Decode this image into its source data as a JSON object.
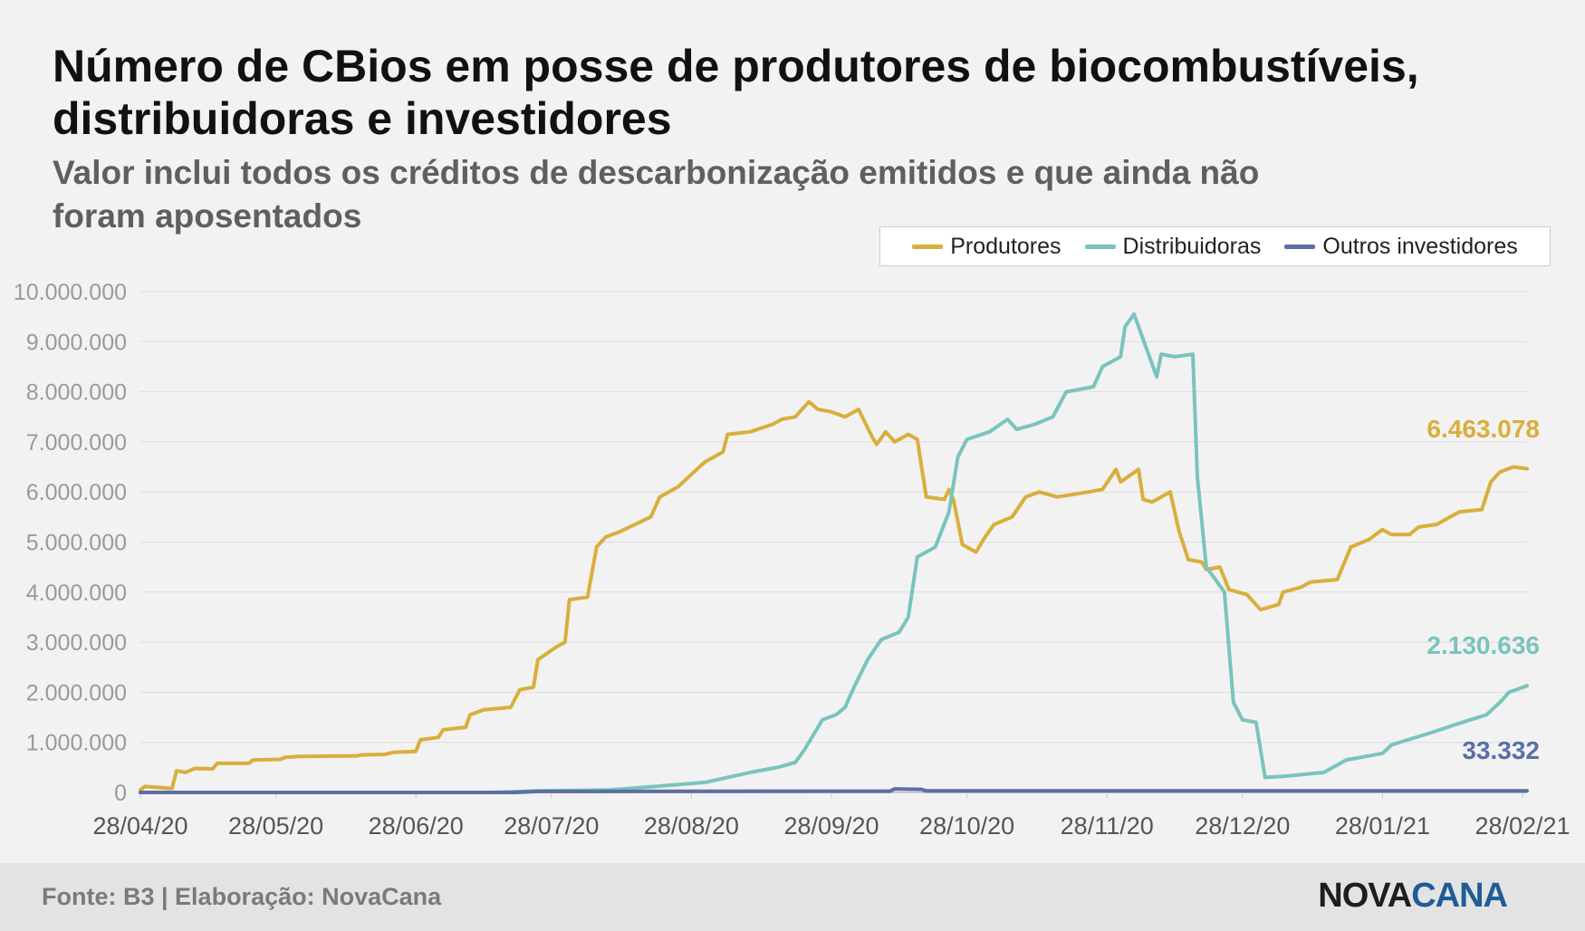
{
  "header": {
    "title": "Número de CBios em posse de produtores de biocombustíveis, distribuidoras e investidores",
    "subtitle": "Valor inclui todos os créditos de descarbonização emitidos e que ainda não foram aposentados"
  },
  "footer": {
    "source": "Fonte: B3 | Elaboração: NovaCana",
    "logo_part1": "NOVA",
    "logo_part2": "CANA"
  },
  "colors": {
    "produtores": "#d9ae3b",
    "distribuidoras": "#79c4bd",
    "outros": "#5a6fa3",
    "grid": "#dddddd",
    "tick_text": "#9a9a9a"
  },
  "chart_data": {
    "type": "line",
    "title": "Número de CBios em posse de produtores de biocombustíveis, distribuidoras e investidores",
    "subtitle": "Valor inclui todos os créditos de descarbonização emitidos e que ainda não foram aposentados",
    "xlabel": "",
    "ylabel": "",
    "x_start": "2020-04-28",
    "x_end": "2021-03-01",
    "ylim": [
      0,
      10000000
    ],
    "y_ticks": [
      "0",
      "1.000.000",
      "2.000.000",
      "3.000.000",
      "4.000.000",
      "5.000.000",
      "6.000.000",
      "7.000.000",
      "8.000.000",
      "9.000.000",
      "10.000.000"
    ],
    "x_ticks": [
      {
        "date": "2020-04-28",
        "label": "28/04/20"
      },
      {
        "date": "2020-05-28",
        "label": "28/05/20"
      },
      {
        "date": "2020-06-28",
        "label": "28/06/20"
      },
      {
        "date": "2020-07-28",
        "label": "28/07/20"
      },
      {
        "date": "2020-08-28",
        "label": "28/08/20"
      },
      {
        "date": "2020-09-28",
        "label": "28/09/20"
      },
      {
        "date": "2020-10-28",
        "label": "28/10/20"
      },
      {
        "date": "2020-11-28",
        "label": "28/11/20"
      },
      {
        "date": "2020-12-28",
        "label": "28/12/20"
      },
      {
        "date": "2021-01-28",
        "label": "28/01/21"
      },
      {
        "date": "2021-02-28",
        "label": "28/02/21"
      }
    ],
    "grid": true,
    "legend_position": "top-right",
    "series": [
      {
        "name": "Produtores",
        "end_label": "6.463.078",
        "points": [
          [
            "2020-04-28",
            50000
          ],
          [
            "2020-04-29",
            120000
          ],
          [
            "2020-05-02",
            100000
          ],
          [
            "2020-05-05",
            80000
          ],
          [
            "2020-05-06",
            430000
          ],
          [
            "2020-05-08",
            400000
          ],
          [
            "2020-05-10",
            480000
          ],
          [
            "2020-05-14",
            470000
          ],
          [
            "2020-05-15",
            580000
          ],
          [
            "2020-05-22",
            580000
          ],
          [
            "2020-05-23",
            650000
          ],
          [
            "2020-05-29",
            660000
          ],
          [
            "2020-05-30",
            700000
          ],
          [
            "2020-06-02",
            720000
          ],
          [
            "2020-06-15",
            730000
          ],
          [
            "2020-06-16",
            750000
          ],
          [
            "2020-06-21",
            760000
          ],
          [
            "2020-06-23",
            800000
          ],
          [
            "2020-06-28",
            820000
          ],
          [
            "2020-06-29",
            1050000
          ],
          [
            "2020-07-03",
            1100000
          ],
          [
            "2020-07-04",
            1250000
          ],
          [
            "2020-07-09",
            1300000
          ],
          [
            "2020-07-10",
            1550000
          ],
          [
            "2020-07-13",
            1650000
          ],
          [
            "2020-07-19",
            1700000
          ],
          [
            "2020-07-21",
            2050000
          ],
          [
            "2020-07-24",
            2100000
          ],
          [
            "2020-07-25",
            2650000
          ],
          [
            "2020-07-29",
            2900000
          ],
          [
            "2020-07-31",
            3000000
          ],
          [
            "2020-08-01",
            3850000
          ],
          [
            "2020-08-05",
            3900000
          ],
          [
            "2020-08-07",
            4900000
          ],
          [
            "2020-08-09",
            5100000
          ],
          [
            "2020-08-12",
            5200000
          ],
          [
            "2020-08-19",
            5500000
          ],
          [
            "2020-08-21",
            5900000
          ],
          [
            "2020-08-25",
            6100000
          ],
          [
            "2020-08-31",
            6600000
          ],
          [
            "2020-09-04",
            6800000
          ],
          [
            "2020-09-05",
            7150000
          ],
          [
            "2020-09-10",
            7200000
          ],
          [
            "2020-09-15",
            7350000
          ],
          [
            "2020-09-17",
            7450000
          ],
          [
            "2020-09-20",
            7500000
          ],
          [
            "2020-09-23",
            7800000
          ],
          [
            "2020-09-25",
            7650000
          ],
          [
            "2020-09-28",
            7600000
          ],
          [
            "2020-10-01",
            7500000
          ],
          [
            "2020-10-04",
            7650000
          ],
          [
            "2020-10-07",
            7100000
          ],
          [
            "2020-10-08",
            6950000
          ],
          [
            "2020-10-10",
            7200000
          ],
          [
            "2020-10-12",
            7000000
          ],
          [
            "2020-10-15",
            7150000
          ],
          [
            "2020-10-17",
            7050000
          ],
          [
            "2020-10-19",
            5900000
          ],
          [
            "2020-10-23",
            5850000
          ],
          [
            "2020-10-24",
            6050000
          ],
          [
            "2020-10-25",
            5850000
          ],
          [
            "2020-10-27",
            4950000
          ],
          [
            "2020-10-30",
            4800000
          ],
          [
            "2020-11-01",
            5100000
          ],
          [
            "2020-11-03",
            5350000
          ],
          [
            "2020-11-07",
            5500000
          ],
          [
            "2020-11-10",
            5900000
          ],
          [
            "2020-11-13",
            6000000
          ],
          [
            "2020-11-17",
            5900000
          ],
          [
            "2020-11-24",
            6000000
          ],
          [
            "2020-11-27",
            6050000
          ],
          [
            "2020-11-30",
            6450000
          ],
          [
            "2020-12-01",
            6200000
          ],
          [
            "2020-12-05",
            6450000
          ],
          [
            "2020-12-06",
            5850000
          ],
          [
            "2020-12-08",
            5800000
          ],
          [
            "2020-12-12",
            6000000
          ],
          [
            "2020-12-14",
            5200000
          ],
          [
            "2020-12-16",
            4650000
          ],
          [
            "2020-12-19",
            4600000
          ],
          [
            "2020-12-20",
            4450000
          ],
          [
            "2020-12-23",
            4500000
          ],
          [
            "2020-12-25",
            4050000
          ],
          [
            "2020-12-29",
            3950000
          ],
          [
            "2021-01-01",
            3650000
          ],
          [
            "2021-01-05",
            3750000
          ],
          [
            "2021-01-06",
            4000000
          ],
          [
            "2021-01-10",
            4100000
          ],
          [
            "2021-01-12",
            4200000
          ],
          [
            "2021-01-18",
            4250000
          ],
          [
            "2021-01-21",
            4900000
          ],
          [
            "2021-01-25",
            5050000
          ],
          [
            "2021-01-28",
            5250000
          ],
          [
            "2021-01-30",
            5150000
          ],
          [
            "2021-02-03",
            5150000
          ],
          [
            "2021-02-05",
            5300000
          ],
          [
            "2021-02-09",
            5350000
          ],
          [
            "2021-02-12",
            5500000
          ],
          [
            "2021-02-14",
            5600000
          ],
          [
            "2021-02-19",
            5650000
          ],
          [
            "2021-02-21",
            6200000
          ],
          [
            "2021-02-23",
            6400000
          ],
          [
            "2021-02-26",
            6500000
          ],
          [
            "2021-03-01",
            6463078
          ]
        ]
      },
      {
        "name": "Distribuidoras",
        "end_label": "2.130.636",
        "points": [
          [
            "2020-04-28",
            0
          ],
          [
            "2020-07-15",
            0
          ],
          [
            "2020-07-25",
            30000
          ],
          [
            "2020-08-10",
            50000
          ],
          [
            "2020-08-20",
            120000
          ],
          [
            "2020-08-31",
            200000
          ],
          [
            "2020-09-10",
            400000
          ],
          [
            "2020-09-16",
            500000
          ],
          [
            "2020-09-20",
            600000
          ],
          [
            "2020-09-22",
            850000
          ],
          [
            "2020-09-26",
            1450000
          ],
          [
            "2020-09-29",
            1550000
          ],
          [
            "2020-10-01",
            1700000
          ],
          [
            "2020-10-03",
            2100000
          ],
          [
            "2020-10-06",
            2650000
          ],
          [
            "2020-10-09",
            3050000
          ],
          [
            "2020-10-13",
            3200000
          ],
          [
            "2020-10-15",
            3500000
          ],
          [
            "2020-10-17",
            4700000
          ],
          [
            "2020-10-21",
            4900000
          ],
          [
            "2020-10-24",
            5600000
          ],
          [
            "2020-10-26",
            6700000
          ],
          [
            "2020-10-28",
            7050000
          ],
          [
            "2020-11-02",
            7200000
          ],
          [
            "2020-11-06",
            7450000
          ],
          [
            "2020-11-08",
            7250000
          ],
          [
            "2020-11-12",
            7350000
          ],
          [
            "2020-11-16",
            7500000
          ],
          [
            "2020-11-19",
            8000000
          ],
          [
            "2020-11-25",
            8100000
          ],
          [
            "2020-11-27",
            8500000
          ],
          [
            "2020-12-01",
            8700000
          ],
          [
            "2020-12-02",
            9300000
          ],
          [
            "2020-12-04",
            9550000
          ],
          [
            "2020-12-09",
            8300000
          ],
          [
            "2020-12-10",
            8750000
          ],
          [
            "2020-12-13",
            8700000
          ],
          [
            "2020-12-17",
            8750000
          ],
          [
            "2020-12-18",
            6300000
          ],
          [
            "2020-12-20",
            4500000
          ],
          [
            "2020-12-24",
            4000000
          ],
          [
            "2020-12-26",
            1800000
          ],
          [
            "2020-12-28",
            1450000
          ],
          [
            "2020-12-31",
            1400000
          ],
          [
            "2021-01-02",
            300000
          ],
          [
            "2021-01-06",
            320000
          ],
          [
            "2021-01-15",
            400000
          ],
          [
            "2021-01-20",
            650000
          ],
          [
            "2021-01-28",
            780000
          ],
          [
            "2021-01-30",
            950000
          ],
          [
            "2021-02-08",
            1200000
          ],
          [
            "2021-02-14",
            1380000
          ],
          [
            "2021-02-20",
            1550000
          ],
          [
            "2021-02-23",
            1800000
          ],
          [
            "2021-02-25",
            2000000
          ],
          [
            "2021-03-01",
            2130636
          ]
        ]
      },
      {
        "name": "Outros investidores",
        "end_label": "33.332",
        "points": [
          [
            "2020-04-28",
            0
          ],
          [
            "2020-07-20",
            0
          ],
          [
            "2020-07-25",
            20000
          ],
          [
            "2020-10-11",
            25000
          ],
          [
            "2020-10-12",
            70000
          ],
          [
            "2020-10-18",
            60000
          ],
          [
            "2020-10-19",
            30000
          ],
          [
            "2021-03-01",
            33332
          ]
        ]
      }
    ]
  }
}
